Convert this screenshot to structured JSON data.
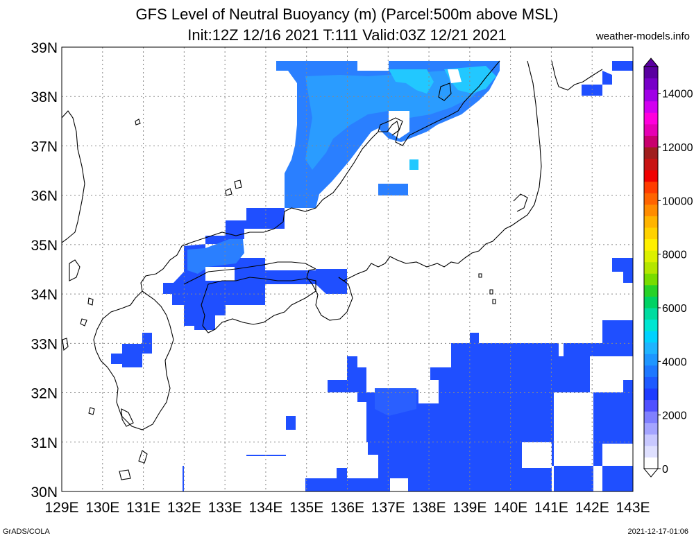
{
  "header": {
    "title_line1": "GFS Level of Neutral Buoyancy (m) (Parcel:500m above MSL)",
    "title_line2": "Init:12Z 12/16 2021 T:111 Valid:03Z 12/21 2021",
    "credit": "weather-models.info"
  },
  "footer": {
    "left": "GrADS/COLA",
    "right": "2021-12-17-01:06"
  },
  "map": {
    "lon_range": [
      129,
      143
    ],
    "lat_range": [
      30,
      39
    ],
    "lon_labels": [
      "129E",
      "130E",
      "131E",
      "132E",
      "133E",
      "134E",
      "135E",
      "136E",
      "137E",
      "138E",
      "139E",
      "140E",
      "141E",
      "142E",
      "143E"
    ],
    "lat_labels": [
      "30N",
      "31N",
      "32N",
      "33N",
      "34N",
      "35N",
      "36N",
      "37N",
      "38N",
      "39N"
    ],
    "grid": "dotted",
    "fill_color_main": "#1f4fff",
    "fill_color_light": "#2a8fff",
    "fill_color_cyan": "#22c8ff"
  },
  "colorbar": {
    "ticks": [
      "0",
      "2000",
      "4000",
      "6000",
      "8000",
      "10000",
      "12000",
      "14000"
    ],
    "colors": [
      "#ffffff",
      "#dfe0ff",
      "#c8c8ff",
      "#a4a4ff",
      "#8080ff",
      "#5050ff",
      "#1e3cff",
      "#1e5aff",
      "#1e78ff",
      "#1e96ff",
      "#1eb4ff",
      "#00d2ff",
      "#00e6d2",
      "#00dca0",
      "#00d264",
      "#28d228",
      "#78dc00",
      "#b4e600",
      "#dcf000",
      "#fff000",
      "#ffd200",
      "#ffb400",
      "#ff8c00",
      "#ff6400",
      "#ff3c00",
      "#f00000",
      "#c81414",
      "#a01e1e",
      "#c8006e",
      "#e600b4",
      "#ff00dc",
      "#d200f0",
      "#a000e6",
      "#7800c8",
      "#5a00a0"
    ]
  }
}
